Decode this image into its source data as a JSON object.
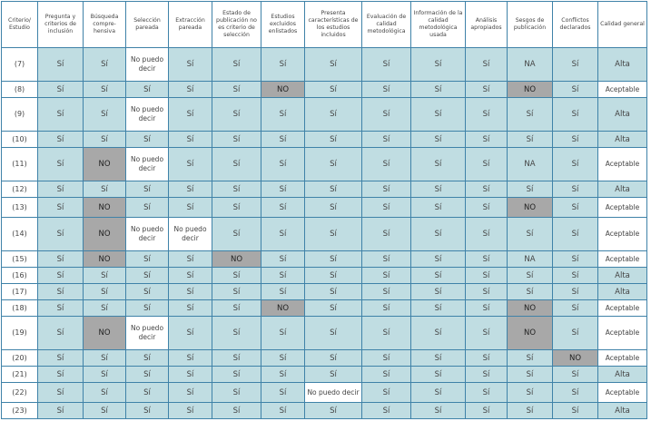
{
  "headers": [
    "Criterio/ Estudio",
    "Pregunta y criterios de inclusión",
    "Búsqueda compre-hensiva",
    "Selección pareada",
    "Extracción pareada",
    "Estado de publicación no es criterio de selección",
    "Estudios excluidos enlistados",
    "Presenta características de los estudios incluidos",
    "Evaluación de calidad metodológica",
    "Información de la calidad metodológica usada",
    "Análisis apropiados",
    "Sesgos de publicación",
    "Conflictos declarados",
    "Calidad general"
  ],
  "rows": [
    {
      "id": "(7)",
      "h": "tall",
      "cells": [
        "Sí",
        "Sí",
        "No puedo decir",
        "Sí",
        "Sí",
        "Sí",
        "Sí",
        "Sí",
        "Sí",
        "Sí",
        "NA",
        "Sí",
        "Alta"
      ]
    },
    {
      "id": "(8)",
      "h": "short",
      "cells": [
        "Sí",
        "Sí",
        "Sí",
        "Sí",
        "Sí",
        "NO",
        "Sí",
        "Sí",
        "Sí",
        "Sí",
        "NO",
        "Sí",
        "Aceptable"
      ]
    },
    {
      "id": "(9)",
      "h": "tall",
      "cells": [
        "Sí",
        "Sí",
        "No puedo decir",
        "Sí",
        "Sí",
        "Sí",
        "Sí",
        "Sí",
        "Sí",
        "Sí",
        "Sí",
        "Sí",
        "Alta"
      ]
    },
    {
      "id": "(10)",
      "h": "short",
      "cells": [
        "Sí",
        "Sí",
        "Sí",
        "Sí",
        "Sí",
        "Sí",
        "Sí",
        "Sí",
        "Sí",
        "Sí",
        "Sí",
        "Sí",
        "Alta"
      ]
    },
    {
      "id": "(11)",
      "h": "tall",
      "cells": [
        "Sí",
        "NO",
        "No puedo decir",
        "Sí",
        "Sí",
        "Sí",
        "Sí",
        "Sí",
        "Sí",
        "Sí",
        "NA",
        "Sí",
        "Aceptable"
      ]
    },
    {
      "id": "(12)",
      "h": "short",
      "cells": [
        "Sí",
        "Sí",
        "Sí",
        "Sí",
        "Sí",
        "Sí",
        "Sí",
        "Sí",
        "Sí",
        "Sí",
        "Sí",
        "Sí",
        "Alta"
      ]
    },
    {
      "id": "(13)",
      "h": "mid",
      "cells": [
        "Sí",
        "NO",
        "Sí",
        "Sí",
        "Sí",
        "Sí",
        "Sí",
        "Sí",
        "Sí",
        "Sí",
        "NO",
        "Sí",
        "Aceptable"
      ]
    },
    {
      "id": "(14)",
      "h": "tall",
      "cells": [
        "Sí",
        "NO",
        "No puedo decir",
        "No puedo decir",
        "Sí",
        "Sí",
        "Sí",
        "Sí",
        "Sí",
        "Sí",
        "Sí",
        "Sí",
        "Aceptable"
      ]
    },
    {
      "id": "(15)",
      "h": "short",
      "cells": [
        "Sí",
        "NO",
        "Sí",
        "Sí",
        "NO",
        "Sí",
        "Sí",
        "Sí",
        "Sí",
        "Sí",
        "NA",
        "Sí",
        "Aceptable"
      ]
    },
    {
      "id": "(16)",
      "h": "short",
      "cells": [
        "Sí",
        "Sí",
        "Sí",
        "Sí",
        "Sí",
        "Sí",
        "Sí",
        "Sí",
        "Sí",
        "Sí",
        "Sí",
        "Sí",
        "Alta"
      ]
    },
    {
      "id": "(17)",
      "h": "short",
      "cells": [
        "Sí",
        "Sí",
        "Sí",
        "Sí",
        "Sí",
        "Sí",
        "Sí",
        "Sí",
        "Sí",
        "Sí",
        "Sí",
        "Sí",
        "Alta"
      ]
    },
    {
      "id": "(18)",
      "h": "short",
      "cells": [
        "Sí",
        "Sí",
        "Sí",
        "Sí",
        "Sí",
        "NO",
        "Sí",
        "Sí",
        "Sí",
        "Sí",
        "NO",
        "Sí",
        "Aceptable"
      ]
    },
    {
      "id": "(19)",
      "h": "tall",
      "cells": [
        "Sí",
        "NO",
        "No puedo decir",
        "Sí",
        "Sí",
        "Sí",
        "Sí",
        "Sí",
        "Sí",
        "Sí",
        "NO",
        "Sí",
        "Aceptable"
      ]
    },
    {
      "id": "(20)",
      "h": "short",
      "cells": [
        "Sí",
        "Sí",
        "Sí",
        "Sí",
        "Sí",
        "Sí",
        "Sí",
        "Sí",
        "Sí",
        "Sí",
        "Sí",
        "NO",
        "Aceptable"
      ]
    },
    {
      "id": "(21)",
      "h": "short",
      "cells": [
        "Sí",
        "Sí",
        "Sí",
        "Sí",
        "Sí",
        "Sí",
        "Sí",
        "Sí",
        "Sí",
        "Sí",
        "Sí",
        "Sí",
        "Alta"
      ]
    },
    {
      "id": "(22)",
      "h": "mid",
      "cells": [
        "Sí",
        "Sí",
        "Sí",
        "Sí",
        "Sí",
        "Sí",
        "No puedo decir",
        "Sí",
        "Sí",
        "Sí",
        "Sí",
        "Sí",
        "Aceptable"
      ]
    },
    {
      "id": "(23)",
      "h": "short",
      "cells": [
        "Sí",
        "Sí",
        "Sí",
        "Sí",
        "Sí",
        "Sí",
        "Sí",
        "Sí",
        "Sí",
        "Sí",
        "Sí",
        "Sí",
        "Alta"
      ]
    }
  ]
}
